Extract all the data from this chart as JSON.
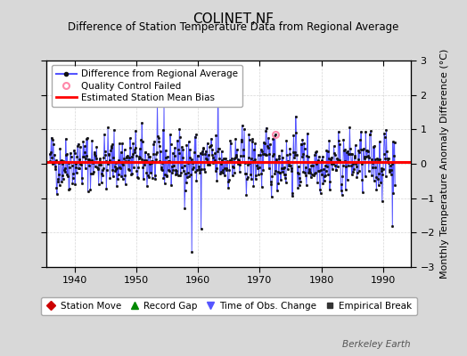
{
  "title": "COLINET,NF",
  "subtitle": "Difference of Station Temperature Data from Regional Average",
  "ylabel": "Monthly Temperature Anomaly Difference (°C)",
  "xlim": [
    1935.5,
    1994.5
  ],
  "ylim": [
    -3,
    3
  ],
  "yticks": [
    -3,
    -2,
    -1,
    0,
    1,
    2,
    3
  ],
  "xticks": [
    1940,
    1950,
    1960,
    1970,
    1980,
    1990
  ],
  "bias_value": 0.05,
  "seed": 42,
  "n_points": 672,
  "x_start": 1936.0,
  "x_step": 0.08333,
  "background_color": "#d8d8d8",
  "plot_bg_color": "#ffffff",
  "line_color": "#5555ff",
  "dot_color": "#111111",
  "bias_color": "#ff0000",
  "qc_color": "#ff88aa",
  "title_fontsize": 11,
  "subtitle_fontsize": 8.5,
  "ylabel_fontsize": 8,
  "tick_fontsize": 8,
  "legend_fontsize": 7.5,
  "footer_fontsize": 7.5,
  "watermark": "Berkeley Earth",
  "grid_color": "#cccccc"
}
